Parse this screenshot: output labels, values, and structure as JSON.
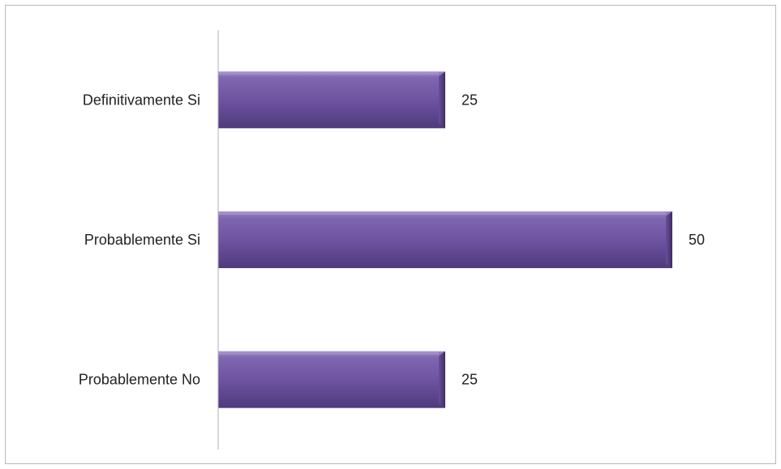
{
  "chart_data": {
    "type": "bar",
    "orientation": "horizontal",
    "categories": [
      "Definitivamente Si",
      "Probablemente Si",
      "Probablemente No"
    ],
    "values": [
      25,
      50,
      25
    ],
    "data_labels": [
      "25",
      "50",
      "25"
    ],
    "xlim": [
      0,
      50
    ],
    "title": "",
    "xlabel": "",
    "ylabel": "",
    "grid": false,
    "legend": "none",
    "bar_color": "#7a5ea8"
  }
}
